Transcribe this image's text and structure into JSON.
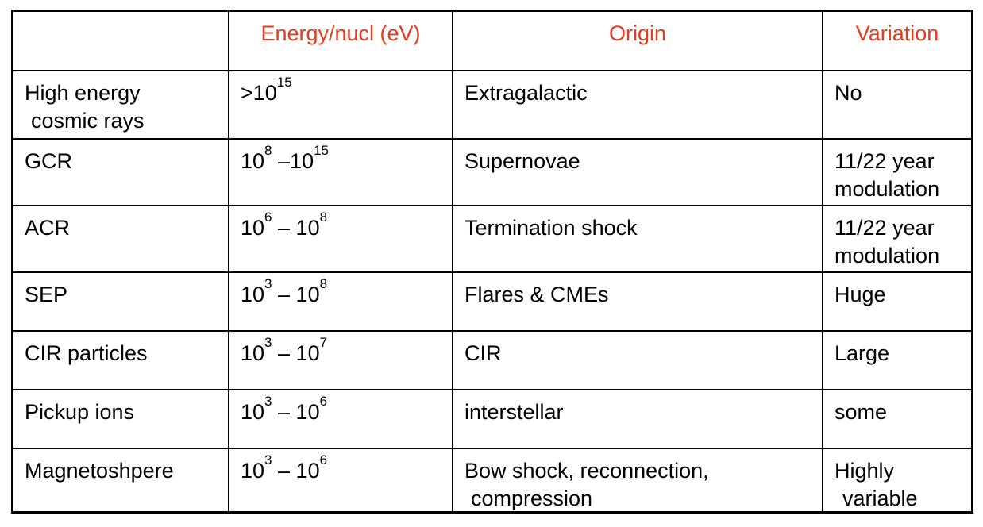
{
  "header": {
    "col0": "",
    "energy": "Energy/nucl (eV)",
    "origin": "Origin",
    "variation": "Variation"
  },
  "rows": [
    {
      "name_line1": "High energy",
      "name_line2": "cosmic rays",
      "energy": {
        "prefix": ">10",
        "exp1": "15",
        "mid": "",
        "base2": "",
        "exp2": ""
      },
      "origin": "Extragalactic",
      "variation_line1": "No",
      "variation_line2": ""
    },
    {
      "name_line1": "GCR",
      "name_line2": "",
      "energy": {
        "prefix": "10",
        "exp1": "8",
        "mid": " –",
        "base2": "10",
        "exp2": "15"
      },
      "origin": "Supernovae",
      "variation_line1": "11/22 year",
      "variation_line2": "modulation"
    },
    {
      "name_line1": "ACR",
      "name_line2": "",
      "energy": {
        "prefix": "10",
        "exp1": "6",
        "mid": " – ",
        "base2": "10",
        "exp2": "8"
      },
      "origin": "Termination shock",
      "variation_line1": "11/22 year",
      "variation_line2": "modulation"
    },
    {
      "name_line1": "SEP",
      "name_line2": "",
      "energy": {
        "prefix": "10",
        "exp1": "3",
        "mid": " – ",
        "base2": "10",
        "exp2": "8"
      },
      "origin": "Flares & CMEs",
      "variation_line1": "Huge",
      "variation_line2": ""
    },
    {
      "name_line1": "CIR particles",
      "name_line2": "",
      "energy": {
        "prefix": "10",
        "exp1": "3",
        "mid": " – ",
        "base2": "10",
        "exp2": "7"
      },
      "origin": "CIR",
      "variation_line1": "Large",
      "variation_line2": ""
    },
    {
      "name_line1": "Pickup ions",
      "name_line2": "",
      "energy": {
        "prefix": "10",
        "exp1": "3",
        "mid": " – ",
        "base2": "10",
        "exp2": "6"
      },
      "origin": "interstellar",
      "variation_line1": "some",
      "variation_line2": ""
    },
    {
      "name_line1": "Magnetoshpere",
      "name_line2": "",
      "energy": {
        "prefix": "10",
        "exp1": "3",
        "mid": " – ",
        "base2": "10",
        "exp2": "6"
      },
      "origin": "Bow shock, reconnection,",
      "origin_line2": "compression",
      "variation_line1": "Highly",
      "variation_line2": "variable"
    }
  ]
}
